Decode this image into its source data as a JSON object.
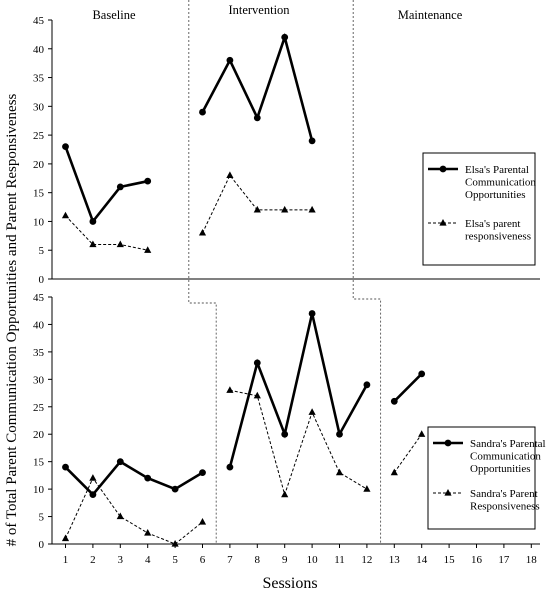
{
  "chart_data": {
    "type": "line",
    "ylabel": "# of Total Parent Communication Opportunities and Parent Responsiveness",
    "xlabel": "Sessions",
    "x_ticks": [
      1,
      2,
      3,
      4,
      5,
      6,
      7,
      8,
      9,
      10,
      11,
      12,
      13,
      14,
      15,
      16,
      17,
      18
    ],
    "phases": [
      "Baseline",
      "Intervention",
      "Maintenance"
    ],
    "panels": [
      {
        "participant": "Elsa",
        "ylim": [
          0,
          45
        ],
        "y_ticks": [
          0,
          5,
          10,
          15,
          20,
          25,
          30,
          35,
          40,
          45
        ],
        "phase_change_after": [
          5,
          11
        ],
        "legend": [
          "Elsa's Parental Communication Opportunities",
          "Elsa's parent responsiveness"
        ],
        "series": [
          {
            "name": "Elsa's Parental Communication Opportunities",
            "style": "solid-circle",
            "segments": [
              {
                "x": [
                  1,
                  2,
                  3,
                  4
                ],
                "y": [
                  23,
                  10,
                  16,
                  17
                ]
              },
              {
                "x": [
                  6,
                  7,
                  8,
                  9,
                  10
                ],
                "y": [
                  29,
                  38,
                  28,
                  42,
                  24
                ]
              }
            ]
          },
          {
            "name": "Elsa's parent responsiveness",
            "style": "dashed-triangle",
            "segments": [
              {
                "x": [
                  1,
                  2,
                  3,
                  4
                ],
                "y": [
                  11,
                  6,
                  6,
                  5
                ]
              },
              {
                "x": [
                  6,
                  7,
                  8,
                  9,
                  10
                ],
                "y": [
                  8,
                  18,
                  12,
                  12,
                  12
                ]
              }
            ]
          }
        ]
      },
      {
        "participant": "Sandra",
        "ylim": [
          0,
          45
        ],
        "y_ticks": [
          0,
          5,
          10,
          15,
          20,
          25,
          30,
          35,
          40,
          45
        ],
        "phase_change_after": [
          6,
          12
        ],
        "legend": [
          "Sandra's Parental Communication Opportunities",
          "Sandra's Parent Responsiveness"
        ],
        "series": [
          {
            "name": "Sandra's Parental Communication Opportunities",
            "style": "solid-circle",
            "segments": [
              {
                "x": [
                  1,
                  2,
                  3,
                  4,
                  5,
                  6
                ],
                "y": [
                  14,
                  9,
                  15,
                  12,
                  10,
                  13
                ]
              },
              {
                "x": [
                  7,
                  8,
                  9,
                  10,
                  11,
                  12
                ],
                "y": [
                  14,
                  33,
                  20,
                  42,
                  20,
                  29
                ]
              },
              {
                "x": [
                  13,
                  14
                ],
                "y": [
                  26,
                  31
                ]
              }
            ]
          },
          {
            "name": "Sandra's Parent Responsiveness",
            "style": "dashed-triangle",
            "segments": [
              {
                "x": [
                  1,
                  2,
                  3,
                  4,
                  5,
                  6
                ],
                "y": [
                  1,
                  12,
                  5,
                  2,
                  0,
                  4
                ]
              },
              {
                "x": [
                  7,
                  8,
                  9,
                  10,
                  11,
                  12
                ],
                "y": [
                  28,
                  27,
                  9,
                  24,
                  13,
                  10
                ]
              },
              {
                "x": [
                  13,
                  14
                ],
                "y": [
                  13,
                  20
                ]
              }
            ]
          }
        ]
      }
    ]
  }
}
